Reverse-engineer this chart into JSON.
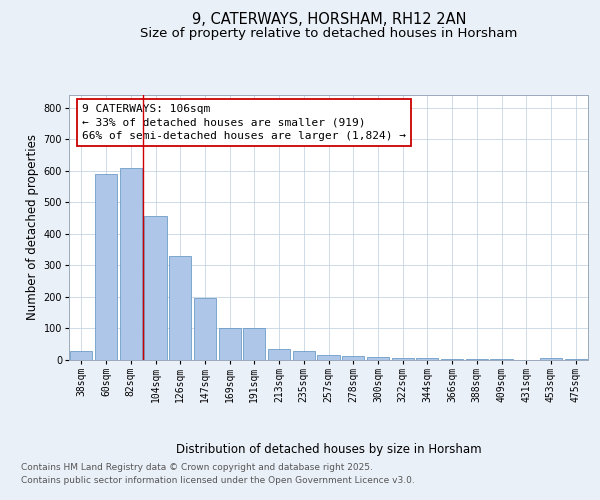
{
  "title": "9, CATERWAYS, HORSHAM, RH12 2AN",
  "subtitle": "Size of property relative to detached houses in Horsham",
  "xlabel": "Distribution of detached houses by size in Horsham",
  "ylabel": "Number of detached properties",
  "categories": [
    "38sqm",
    "60sqm",
    "82sqm",
    "104sqm",
    "126sqm",
    "147sqm",
    "169sqm",
    "191sqm",
    "213sqm",
    "235sqm",
    "257sqm",
    "278sqm",
    "300sqm",
    "322sqm",
    "344sqm",
    "366sqm",
    "388sqm",
    "409sqm",
    "431sqm",
    "453sqm",
    "475sqm"
  ],
  "values": [
    30,
    590,
    610,
    455,
    330,
    195,
    100,
    102,
    35,
    30,
    15,
    12,
    8,
    5,
    5,
    3,
    3,
    2,
    0,
    5,
    2
  ],
  "bar_color": "#aec6e8",
  "bar_edge_color": "#5a8fc0",
  "vline_x_index": 2.5,
  "vline_color": "#cc0000",
  "annotation_text": "9 CATERWAYS: 106sqm\n← 33% of detached houses are smaller (919)\n66% of semi-detached houses are larger (1,824) →",
  "annotation_box_color": "#ffffff",
  "annotation_box_edge": "#cc0000",
  "ylim": [
    0,
    840
  ],
  "yticks": [
    0,
    100,
    200,
    300,
    400,
    500,
    600,
    700,
    800
  ],
  "bg_color": "#eaf0f8",
  "plot_bg_color": "#ffffff",
  "grid_color": "#c8d4e4",
  "footer_line1": "Contains HM Land Registry data © Crown copyright and database right 2025.",
  "footer_line2": "Contains public sector information licensed under the Open Government Licence v3.0.",
  "title_fontsize": 10.5,
  "subtitle_fontsize": 9.5,
  "axis_label_fontsize": 8.5,
  "tick_fontsize": 7,
  "annotation_fontsize": 8,
  "footer_fontsize": 6.5
}
